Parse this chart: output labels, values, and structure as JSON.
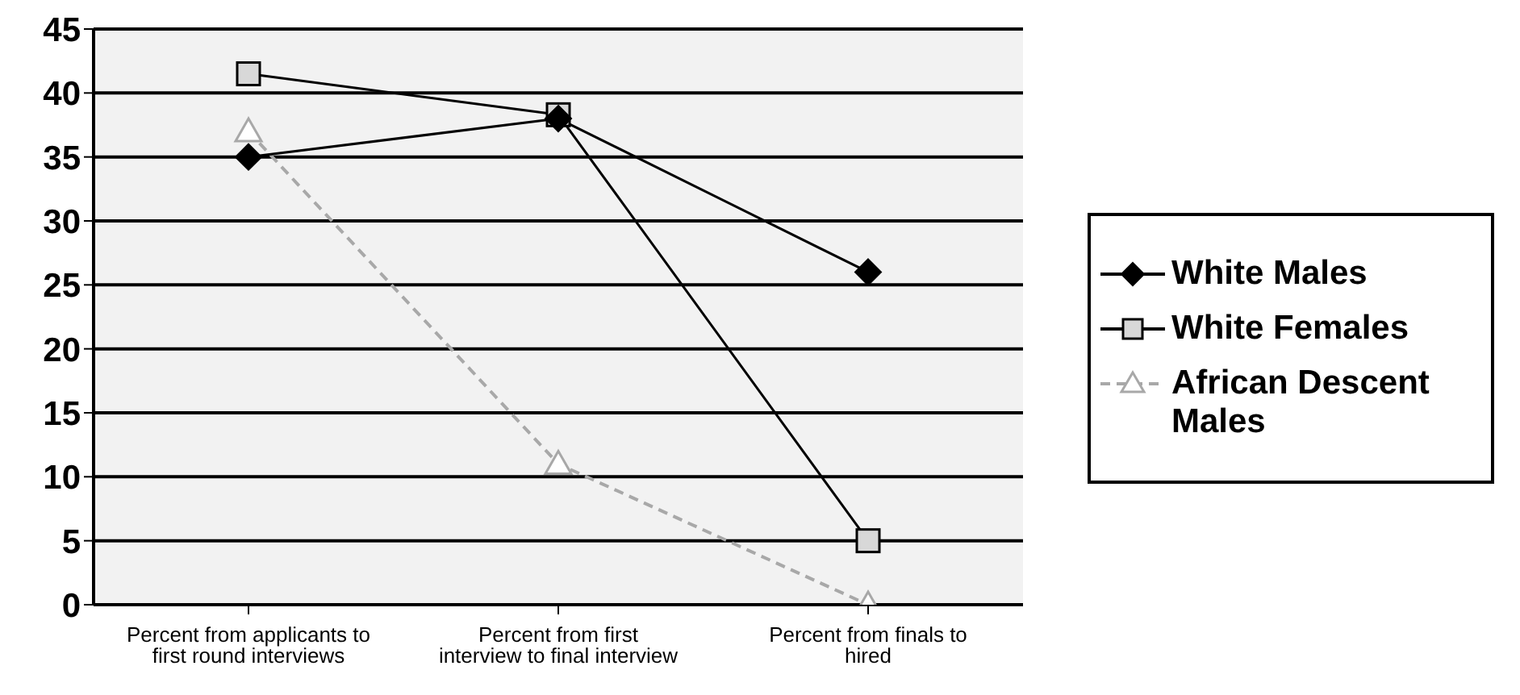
{
  "chart_data": {
    "type": "line",
    "categories": [
      "Percent from applicants to first round interviews",
      "Percent from first interview to final interview",
      "Percent from finals to hired"
    ],
    "series": [
      {
        "name": "White Males",
        "color": "#000000",
        "values": [
          35,
          38,
          26
        ],
        "marker": "diamond"
      },
      {
        "name": "White Females",
        "color": "#000000",
        "values": [
          41.5,
          38.3,
          5
        ],
        "marker": "square"
      },
      {
        "name": "African Descent Males",
        "color": "#a8a8a8",
        "values": [
          37,
          11,
          0
        ],
        "marker": "triangle",
        "line_style": "dashed"
      }
    ],
    "ylim": [
      0,
      45
    ],
    "yticks": [
      0,
      5,
      10,
      15,
      20,
      25,
      30,
      35,
      40,
      45
    ],
    "grid": "y",
    "legend": "right"
  }
}
